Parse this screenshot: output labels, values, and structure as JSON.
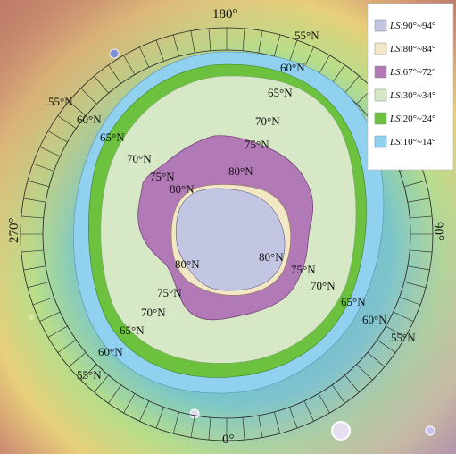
{
  "map": {
    "longitude_labels": {
      "top": "180°",
      "right": "90°",
      "bottom": "0°",
      "left": "270°"
    },
    "latitude_labels": {
      "lat55": "55°N",
      "lat60": "60°N",
      "lat65": "65°N",
      "lat70": "70°N",
      "lat75": "75°N",
      "lat80": "80°N"
    },
    "zones": [
      {
        "id": "ls90",
        "color": "#c3c6e2"
      },
      {
        "id": "ls80",
        "color": "#f3e8c6"
      },
      {
        "id": "ls67",
        "color": "#b17ab6"
      },
      {
        "id": "ls30",
        "color": "#d6e8c5"
      },
      {
        "id": "ls20",
        "color": "#6cc13f"
      },
      {
        "id": "ls10",
        "color": "#8fd1ee"
      }
    ]
  },
  "legend": {
    "items": [
      {
        "prefix": "LS",
        "range": ":90°~94°",
        "color": "#c3c6e2"
      },
      {
        "prefix": "LS",
        "range": ":80°~84°",
        "color": "#f3e8c6"
      },
      {
        "prefix": "LS",
        "range": ":67°~72°",
        "color": "#b17ab6"
      },
      {
        "prefix": "LS",
        "range": ":30°~34°",
        "color": "#d6e8c5"
      },
      {
        "prefix": "LS",
        "range": ":20°~24°",
        "color": "#6cc13f"
      },
      {
        "prefix": "LS",
        "range": ":10°~14°",
        "color": "#8fd1ee"
      }
    ]
  }
}
